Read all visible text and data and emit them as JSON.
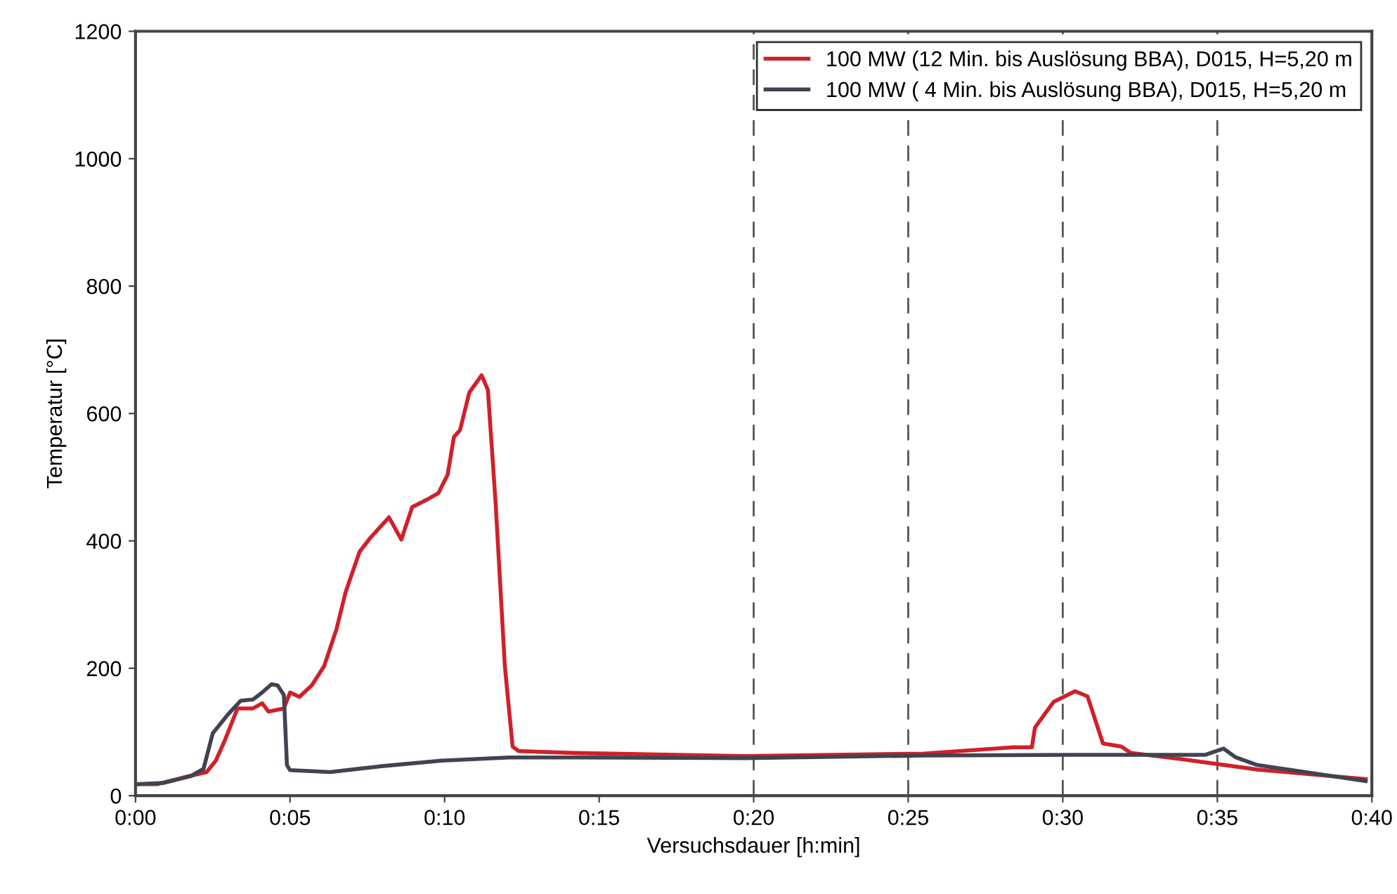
{
  "chart_data": {
    "type": "line",
    "xlabel": "Versuchsdauer [h:min]",
    "ylabel": "Temperatur [°C]",
    "xlim": [
      0,
      40
    ],
    "ylim": [
      0,
      1200
    ],
    "xticks": [
      {
        "value": 0,
        "label": "0:00"
      },
      {
        "value": 5,
        "label": "0:05"
      },
      {
        "value": 10,
        "label": "0:10"
      },
      {
        "value": 15,
        "label": "0:15"
      },
      {
        "value": 20,
        "label": "0:20"
      },
      {
        "value": 25,
        "label": "0:25"
      },
      {
        "value": 30,
        "label": "0:30"
      },
      {
        "value": 35,
        "label": "0:35"
      },
      {
        "value": 40,
        "label": "0:40"
      }
    ],
    "yticks": [
      0,
      200,
      400,
      600,
      800,
      1000,
      1200
    ],
    "grid": false,
    "legend": "top right",
    "marker": "none",
    "line_style": "solid",
    "ref_lines": [
      {
        "axis": "x",
        "value": 20,
        "color": "#555555",
        "line_style": "dashed"
      },
      {
        "axis": "x",
        "value": 25,
        "color": "#555555",
        "line_style": "dashed"
      },
      {
        "axis": "x",
        "value": 30,
        "color": "#555555",
        "line_style": "dashed"
      },
      {
        "axis": "x",
        "value": 35,
        "color": "#555555",
        "line_style": "dashed"
      }
    ],
    "series": [
      {
        "name": "100 MW (12 Min. bis Auslösung BBA), D015, H=5,20 m",
        "color": "#d0202a",
        "x": [
          0,
          0.7,
          1.6,
          2.3,
          2.6,
          2.9,
          3.3,
          3.8,
          4.1,
          4.3,
          4.8,
          5.0,
          5.3,
          5.7,
          6.1,
          6.5,
          6.8,
          7.25,
          7.6,
          8.2,
          8.6,
          8.95,
          9.4,
          9.8,
          10.1,
          10.3,
          10.5,
          10.8,
          11.2,
          11.4,
          11.65,
          11.95,
          12.2,
          12.4,
          14.2,
          19.7,
          25.5,
          28.4,
          29.0,
          29.1,
          29.7,
          30.4,
          30.8,
          31.3,
          31.9,
          32.2,
          33.9,
          36.3,
          39.8
        ],
        "values": [
          18,
          18,
          29,
          37,
          55,
          88,
          137,
          137,
          145,
          132,
          137,
          162,
          155,
          173,
          203,
          261,
          320,
          383,
          405,
          437,
          402,
          453,
          464,
          475,
          504,
          563,
          574,
          633,
          660,
          637,
          460,
          203,
          77,
          70,
          67,
          62,
          66,
          76,
          76,
          107,
          147,
          164,
          156,
          82,
          77,
          67,
          57,
          41,
          26
        ]
      },
      {
        "name": "100 MW ( 4 Min. bis Auslösung BBA), D015, H=5,20 m",
        "color": "#3f4450",
        "x": [
          0,
          0.9,
          1.8,
          2.2,
          2.5,
          3.0,
          3.4,
          3.8,
          4.1,
          4.4,
          4.6,
          4.8,
          4.9,
          5.0,
          6.3,
          7.9,
          9.9,
          12.1,
          14.2,
          19.7,
          25.5,
          30.3,
          33.9,
          34.6,
          35.2,
          35.6,
          36.3,
          39.8
        ],
        "values": [
          18,
          20,
          31,
          42,
          98,
          128,
          149,
          151,
          162,
          175,
          173,
          158,
          48,
          40,
          37,
          46,
          55,
          60,
          60,
          59,
          63,
          64,
          64,
          64,
          74,
          60,
          48,
          23
        ]
      }
    ]
  }
}
